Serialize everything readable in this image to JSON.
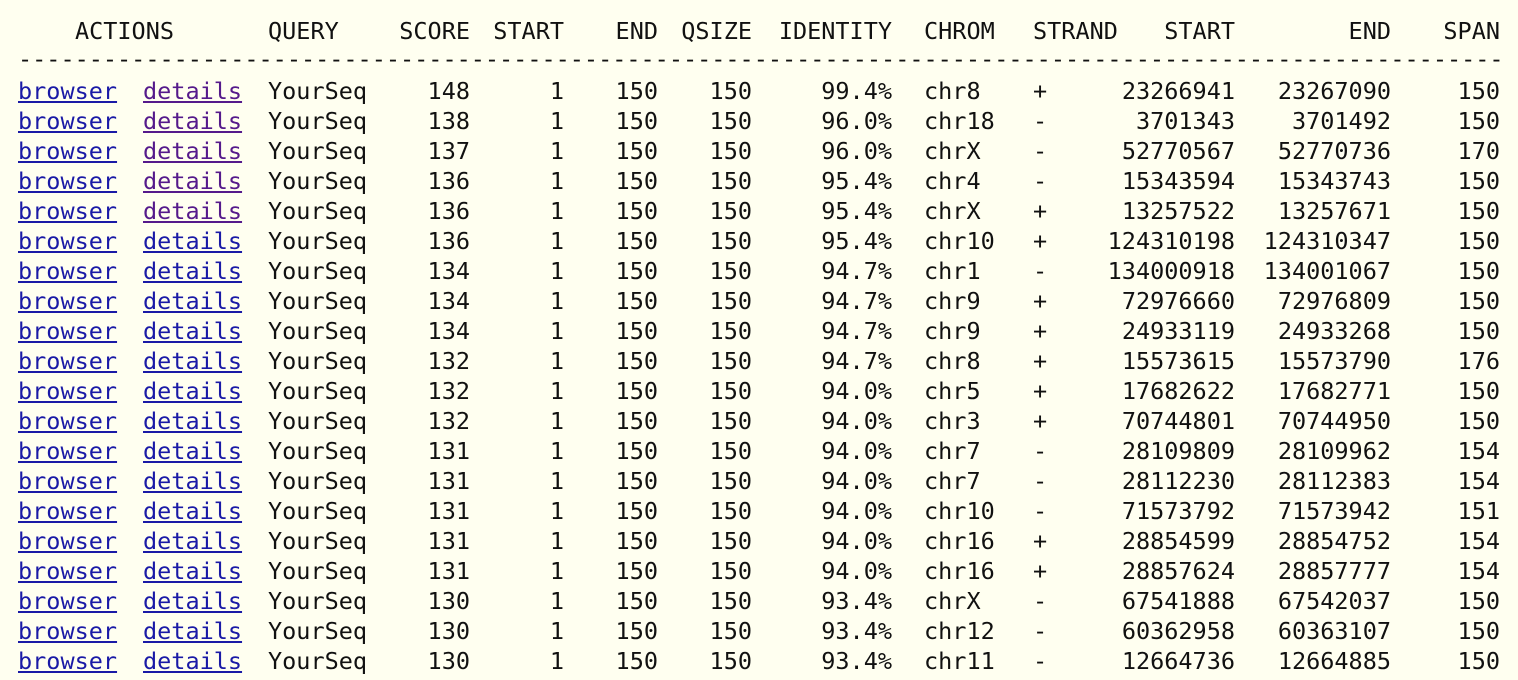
{
  "header": {
    "actions": "ACTIONS",
    "query": "QUERY",
    "score": "SCORE",
    "start": "START",
    "end": "END",
    "qsize": "QSIZE",
    "identity": "IDENTITY",
    "chrom": "CHROM",
    "strand": "STRAND",
    "tstart": "START",
    "tend": "END",
    "span": "SPAN"
  },
  "rule": "-----------------------------------------------------------------------------------------------------------",
  "links": {
    "browser": "browser",
    "details": "details"
  },
  "colors": {
    "background": "#fffff0",
    "link": "#1a1aa6",
    "visited_link": "#551a8b",
    "text": "#111111"
  },
  "rows": [
    {
      "query": "YourSeq",
      "score": "148",
      "start": "1",
      "end": "150",
      "qsize": "150",
      "identity": "99.4%",
      "chrom": "chr8",
      "strand": "+",
      "tstart": "23266941",
      "tend": "23267090",
      "span": "150",
      "details_visited": true
    },
    {
      "query": "YourSeq",
      "score": "138",
      "start": "1",
      "end": "150",
      "qsize": "150",
      "identity": "96.0%",
      "chrom": "chr18",
      "strand": "-",
      "tstart": "3701343",
      "tend": "3701492",
      "span": "150",
      "details_visited": true
    },
    {
      "query": "YourSeq",
      "score": "137",
      "start": "1",
      "end": "150",
      "qsize": "150",
      "identity": "96.0%",
      "chrom": "chrX",
      "strand": "-",
      "tstart": "52770567",
      "tend": "52770736",
      "span": "170",
      "details_visited": true
    },
    {
      "query": "YourSeq",
      "score": "136",
      "start": "1",
      "end": "150",
      "qsize": "150",
      "identity": "95.4%",
      "chrom": "chr4",
      "strand": "-",
      "tstart": "15343594",
      "tend": "15343743",
      "span": "150",
      "details_visited": true
    },
    {
      "query": "YourSeq",
      "score": "136",
      "start": "1",
      "end": "150",
      "qsize": "150",
      "identity": "95.4%",
      "chrom": "chrX",
      "strand": "+",
      "tstart": "13257522",
      "tend": "13257671",
      "span": "150",
      "details_visited": true
    },
    {
      "query": "YourSeq",
      "score": "136",
      "start": "1",
      "end": "150",
      "qsize": "150",
      "identity": "95.4%",
      "chrom": "chr10",
      "strand": "+",
      "tstart": "124310198",
      "tend": "124310347",
      "span": "150",
      "details_visited": false
    },
    {
      "query": "YourSeq",
      "score": "134",
      "start": "1",
      "end": "150",
      "qsize": "150",
      "identity": "94.7%",
      "chrom": "chr1",
      "strand": "-",
      "tstart": "134000918",
      "tend": "134001067",
      "span": "150",
      "details_visited": false
    },
    {
      "query": "YourSeq",
      "score": "134",
      "start": "1",
      "end": "150",
      "qsize": "150",
      "identity": "94.7%",
      "chrom": "chr9",
      "strand": "+",
      "tstart": "72976660",
      "tend": "72976809",
      "span": "150",
      "details_visited": false
    },
    {
      "query": "YourSeq",
      "score": "134",
      "start": "1",
      "end": "150",
      "qsize": "150",
      "identity": "94.7%",
      "chrom": "chr9",
      "strand": "+",
      "tstart": "24933119",
      "tend": "24933268",
      "span": "150",
      "details_visited": false
    },
    {
      "query": "YourSeq",
      "score": "132",
      "start": "1",
      "end": "150",
      "qsize": "150",
      "identity": "94.7%",
      "chrom": "chr8",
      "strand": "+",
      "tstart": "15573615",
      "tend": "15573790",
      "span": "176",
      "details_visited": false
    },
    {
      "query": "YourSeq",
      "score": "132",
      "start": "1",
      "end": "150",
      "qsize": "150",
      "identity": "94.0%",
      "chrom": "chr5",
      "strand": "+",
      "tstart": "17682622",
      "tend": "17682771",
      "span": "150",
      "details_visited": false
    },
    {
      "query": "YourSeq",
      "score": "132",
      "start": "1",
      "end": "150",
      "qsize": "150",
      "identity": "94.0%",
      "chrom": "chr3",
      "strand": "+",
      "tstart": "70744801",
      "tend": "70744950",
      "span": "150",
      "details_visited": false
    },
    {
      "query": "YourSeq",
      "score": "131",
      "start": "1",
      "end": "150",
      "qsize": "150",
      "identity": "94.0%",
      "chrom": "chr7",
      "strand": "-",
      "tstart": "28109809",
      "tend": "28109962",
      "span": "154",
      "details_visited": false
    },
    {
      "query": "YourSeq",
      "score": "131",
      "start": "1",
      "end": "150",
      "qsize": "150",
      "identity": "94.0%",
      "chrom": "chr7",
      "strand": "-",
      "tstart": "28112230",
      "tend": "28112383",
      "span": "154",
      "details_visited": false
    },
    {
      "query": "YourSeq",
      "score": "131",
      "start": "1",
      "end": "150",
      "qsize": "150",
      "identity": "94.0%",
      "chrom": "chr10",
      "strand": "-",
      "tstart": "71573792",
      "tend": "71573942",
      "span": "151",
      "details_visited": false
    },
    {
      "query": "YourSeq",
      "score": "131",
      "start": "1",
      "end": "150",
      "qsize": "150",
      "identity": "94.0%",
      "chrom": "chr16",
      "strand": "+",
      "tstart": "28854599",
      "tend": "28854752",
      "span": "154",
      "details_visited": false
    },
    {
      "query": "YourSeq",
      "score": "131",
      "start": "1",
      "end": "150",
      "qsize": "150",
      "identity": "94.0%",
      "chrom": "chr16",
      "strand": "+",
      "tstart": "28857624",
      "tend": "28857777",
      "span": "154",
      "details_visited": false
    },
    {
      "query": "YourSeq",
      "score": "130",
      "start": "1",
      "end": "150",
      "qsize": "150",
      "identity": "93.4%",
      "chrom": "chrX",
      "strand": "-",
      "tstart": "67541888",
      "tend": "67542037",
      "span": "150",
      "details_visited": false
    },
    {
      "query": "YourSeq",
      "score": "130",
      "start": "1",
      "end": "150",
      "qsize": "150",
      "identity": "93.4%",
      "chrom": "chr12",
      "strand": "-",
      "tstart": "60362958",
      "tend": "60363107",
      "span": "150",
      "details_visited": false
    },
    {
      "query": "YourSeq",
      "score": "130",
      "start": "1",
      "end": "150",
      "qsize": "150",
      "identity": "93.4%",
      "chrom": "chr11",
      "strand": "-",
      "tstart": "12664736",
      "tend": "12664885",
      "span": "150",
      "details_visited": false
    }
  ]
}
